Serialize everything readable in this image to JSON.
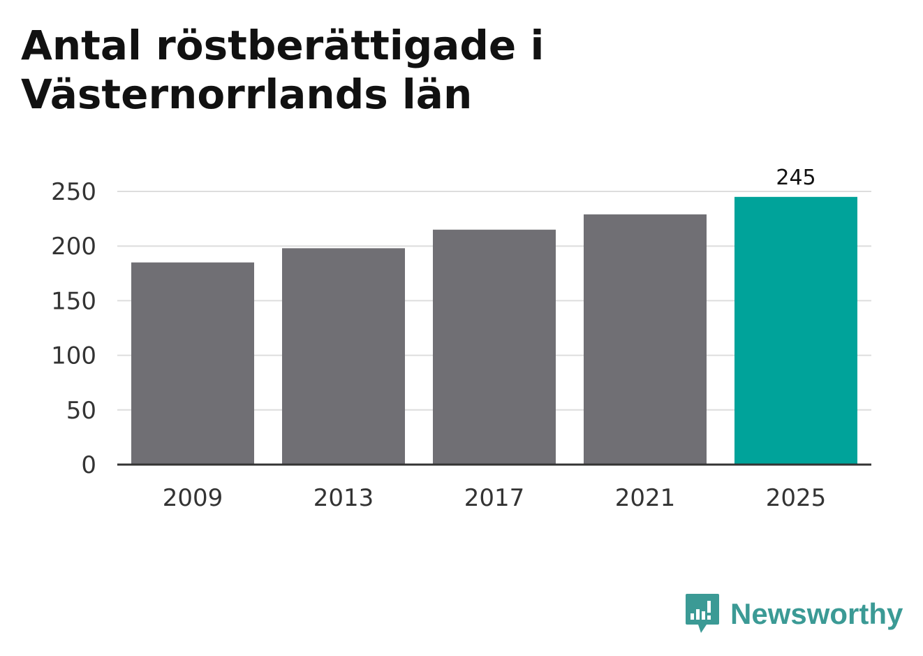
{
  "colors": {
    "bar": "#706f74",
    "highlight": "#00a39a",
    "grid": "#dddddd",
    "axis": "#333333",
    "brand": "#3b9a95"
  },
  "brand": {
    "name": "Newsworthy",
    "icon": "newsworthy-logo-icon"
  },
  "chart_data": {
    "type": "bar",
    "title": "Antal röstberättigade i Västernorrlands län",
    "xlabel": "",
    "ylabel": "",
    "categories": [
      "2009",
      "2013",
      "2017",
      "2021",
      "2025"
    ],
    "values": [
      185,
      198,
      215,
      229,
      245
    ],
    "highlight_index": 4,
    "data_labels": [
      "",
      "",
      "",
      "",
      "245"
    ],
    "ylim": [
      0,
      250
    ],
    "yticks": [
      0,
      50,
      100,
      150,
      200,
      250
    ],
    "grid": true,
    "legend": "none"
  }
}
